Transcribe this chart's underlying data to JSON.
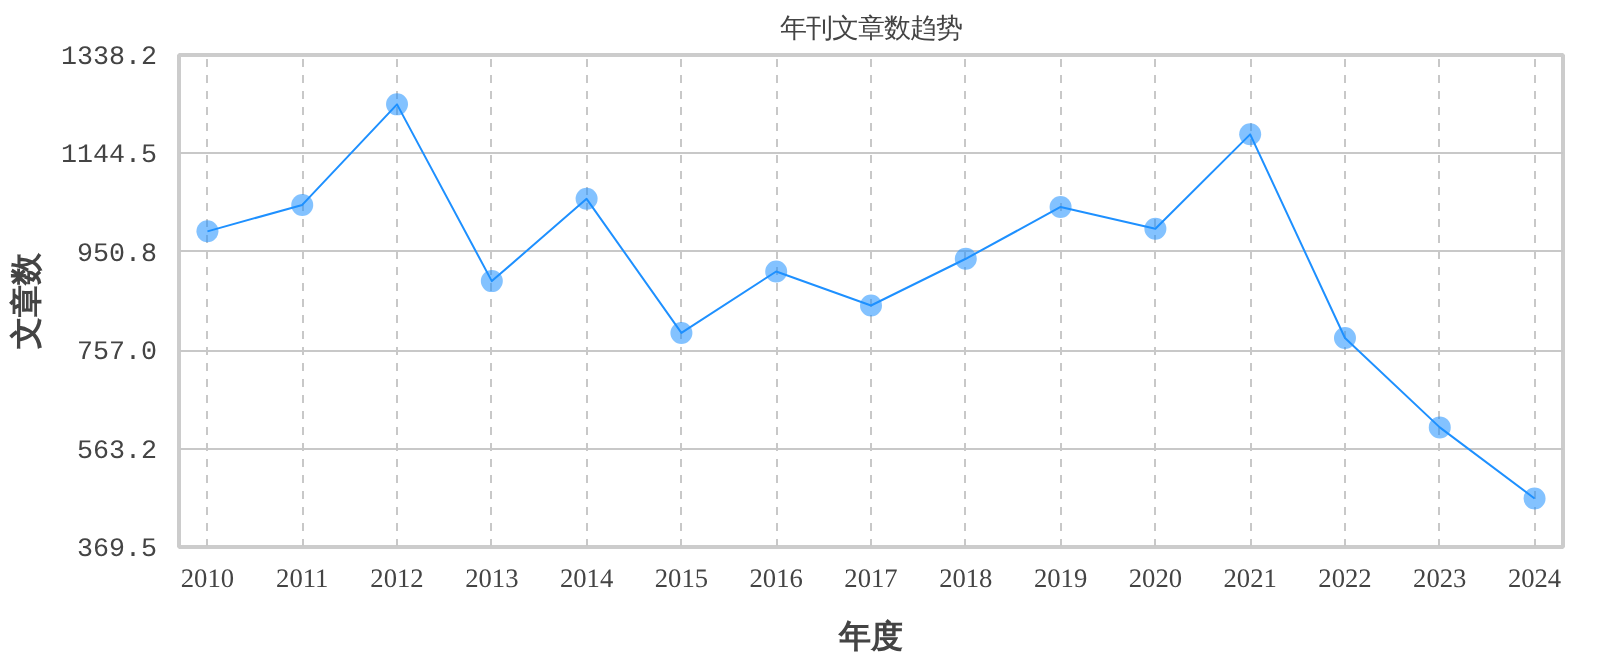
{
  "chart_data": {
    "type": "line",
    "title": "年刊文章数趋势",
    "xlabel": "年度",
    "ylabel": "文章数",
    "x": [
      2010,
      2011,
      2012,
      2013,
      2014,
      2015,
      2016,
      2017,
      2018,
      2019,
      2020,
      2021,
      2022,
      2023,
      2024
    ],
    "series": [
      {
        "color": "#1e90ff",
        "values": [
          991,
          1043,
          1241,
          893,
          1055,
          791,
          912,
          845,
          937,
          1039,
          996,
          1182,
          781,
          605,
          465
        ]
      }
    ],
    "xlim": [
      2009.7,
      2024.3
    ],
    "xticks": [
      2010,
      2011,
      2012,
      2013,
      2014,
      2015,
      2016,
      2017,
      2018,
      2019,
      2020,
      2021,
      2022,
      2023,
      2024
    ],
    "ylim": [
      369.5,
      1338.2
    ],
    "yticks": [
      {
        "value": 369.5,
        "label": "369.5"
      },
      {
        "value": 563.2,
        "label": "563.2"
      },
      {
        "value": 757.0,
        "label": "757.0"
      },
      {
        "value": 950.8,
        "label": "950.8"
      },
      {
        "value": 1144.5,
        "label": "1144.5"
      },
      {
        "value": 1338.2,
        "label": "1338.2"
      }
    ],
    "grid": true,
    "marker": "circle",
    "line_style": "solid"
  }
}
